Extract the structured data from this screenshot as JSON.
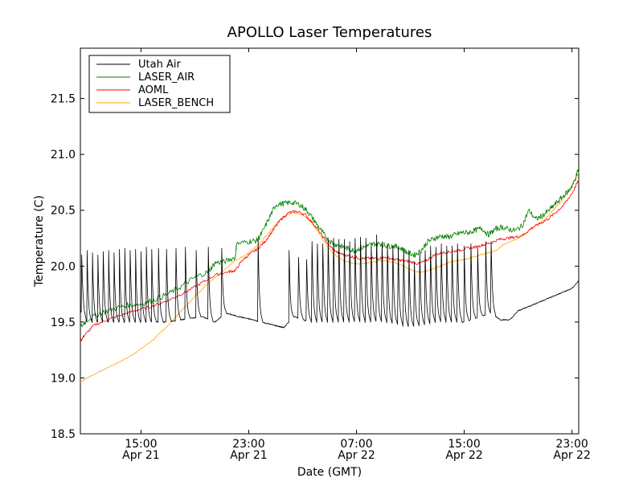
{
  "chart_data": {
    "type": "line",
    "title": "APOLLO Laser Temperatures",
    "xlabel": "Date (GMT)",
    "ylabel": "Temperature (C)",
    "x_unit": "hours since Apr 21 00:00 GMT",
    "xlim": [
      10.5,
      47.5
    ],
    "ylim": [
      18.5,
      21.95
    ],
    "yticks": [
      18.5,
      19.0,
      19.5,
      20.0,
      20.5,
      21.0,
      21.5
    ],
    "ytick_labels": [
      "18.5",
      "19.0",
      "19.5",
      "20.0",
      "20.5",
      "21.0",
      "21.5"
    ],
    "xticks": [
      {
        "x": 15,
        "time": "15:00",
        "date": "Apr 21"
      },
      {
        "x": 23,
        "time": "23:00",
        "date": "Apr 21"
      },
      {
        "x": 31,
        "time": "07:00",
        "date": "Apr 22"
      },
      {
        "x": 39,
        "time": "15:00",
        "date": "Apr 22"
      },
      {
        "x": 47,
        "time": "23:00",
        "date": "Apr 22"
      }
    ],
    "legend_position": "top-left",
    "series": [
      {
        "name": "Utah Air",
        "color": "#000000",
        "cycle_peak": 20.15,
        "cycle_base": 19.5,
        "points": [
          [
            10.5,
            19.6
          ],
          [
            11.0,
            19.5
          ],
          [
            14.0,
            19.5
          ],
          [
            17.0,
            19.5
          ],
          [
            19.5,
            19.55
          ],
          [
            20.5,
            19.5
          ],
          [
            21.3,
            19.58
          ],
          [
            22.2,
            19.55
          ],
          [
            23.3,
            19.52
          ],
          [
            23.9,
            19.5
          ],
          [
            24.6,
            19.48
          ],
          [
            25.6,
            19.45
          ],
          [
            26.4,
            19.55
          ],
          [
            27.5,
            19.5
          ],
          [
            30.0,
            19.5
          ],
          [
            33.0,
            19.5
          ],
          [
            35.0,
            19.45
          ],
          [
            37.0,
            19.5
          ],
          [
            39.0,
            19.5
          ],
          [
            41.0,
            19.58
          ],
          [
            41.7,
            19.52
          ],
          [
            42.4,
            19.52
          ],
          [
            43.0,
            19.6
          ],
          [
            44.0,
            19.65
          ],
          [
            45.0,
            19.7
          ],
          [
            46.0,
            19.75
          ],
          [
            47.0,
            19.8
          ],
          [
            47.5,
            19.87
          ]
        ],
        "spikes": [
          [
            10.6,
            20.1
          ],
          [
            11.0,
            20.14
          ],
          [
            11.4,
            20.12
          ],
          [
            11.8,
            20.1
          ],
          [
            12.2,
            20.13
          ],
          [
            12.6,
            20.14
          ],
          [
            13.0,
            20.12
          ],
          [
            13.4,
            20.15
          ],
          [
            13.8,
            20.16
          ],
          [
            14.2,
            20.14
          ],
          [
            14.6,
            20.15
          ],
          [
            15.0,
            20.13
          ],
          [
            15.4,
            20.17
          ],
          [
            15.8,
            20.15
          ],
          [
            16.3,
            20.16
          ],
          [
            16.9,
            20.15
          ],
          [
            17.6,
            20.16
          ],
          [
            18.3,
            20.17
          ],
          [
            19.1,
            20.14
          ],
          [
            20.0,
            20.17
          ],
          [
            21.0,
            20.16
          ],
          [
            23.7,
            20.24
          ],
          [
            26.0,
            20.14
          ],
          [
            26.7,
            20.08
          ],
          [
            27.3,
            20.06
          ],
          [
            27.7,
            20.22
          ],
          [
            28.1,
            20.2
          ],
          [
            28.5,
            20.2
          ],
          [
            28.9,
            20.24
          ],
          [
            29.3,
            20.25
          ],
          [
            29.7,
            20.24
          ],
          [
            30.1,
            20.24
          ],
          [
            30.5,
            20.22
          ],
          [
            30.9,
            20.25
          ],
          [
            31.3,
            20.26
          ],
          [
            31.7,
            20.25
          ],
          [
            32.1,
            20.2
          ],
          [
            32.5,
            20.28
          ],
          [
            32.9,
            20.22
          ],
          [
            33.3,
            20.2
          ],
          [
            33.7,
            20.18
          ],
          [
            34.1,
            20.18
          ],
          [
            34.5,
            20.16
          ],
          [
            34.9,
            20.12
          ],
          [
            35.3,
            20.04
          ],
          [
            35.7,
            20.12
          ],
          [
            36.1,
            20.14
          ],
          [
            36.5,
            20.18
          ],
          [
            36.9,
            20.17
          ],
          [
            37.3,
            20.2
          ],
          [
            37.7,
            20.18
          ],
          [
            38.1,
            20.18
          ],
          [
            38.5,
            20.2
          ],
          [
            39.0,
            20.18
          ],
          [
            39.5,
            20.2
          ],
          [
            40.0,
            20.16
          ],
          [
            40.6,
            20.22
          ],
          [
            41.0,
            20.22
          ]
        ]
      },
      {
        "name": "LASER_AIR",
        "color": "#008000",
        "points": [
          [
            10.5,
            19.45
          ],
          [
            11.0,
            19.52
          ],
          [
            12.0,
            19.58
          ],
          [
            13.0,
            19.62
          ],
          [
            14.0,
            19.65
          ],
          [
            15.0,
            19.66
          ],
          [
            16.0,
            19.7
          ],
          [
            17.0,
            19.75
          ],
          [
            18.0,
            19.82
          ],
          [
            19.0,
            19.9
          ],
          [
            20.0,
            19.95
          ],
          [
            20.5,
            20.03
          ],
          [
            21.2,
            20.04
          ],
          [
            22.0,
            20.08
          ],
          [
            22.1,
            20.2
          ],
          [
            23.0,
            20.22
          ],
          [
            23.6,
            20.23
          ],
          [
            24.0,
            20.3
          ],
          [
            24.6,
            20.45
          ],
          [
            25.0,
            20.55
          ],
          [
            25.6,
            20.56
          ],
          [
            26.2,
            20.57
          ],
          [
            26.8,
            20.55
          ],
          [
            27.3,
            20.5
          ],
          [
            27.8,
            20.42
          ],
          [
            28.3,
            20.33
          ],
          [
            28.8,
            20.25
          ],
          [
            29.3,
            20.2
          ],
          [
            29.8,
            20.18
          ],
          [
            30.3,
            20.16
          ],
          [
            30.8,
            20.14
          ],
          [
            31.3,
            20.16
          ],
          [
            31.8,
            20.18
          ],
          [
            32.3,
            20.2
          ],
          [
            32.8,
            20.2
          ],
          [
            33.3,
            20.18
          ],
          [
            33.8,
            20.18
          ],
          [
            34.3,
            20.16
          ],
          [
            34.8,
            20.12
          ],
          [
            35.3,
            20.1
          ],
          [
            35.8,
            20.14
          ],
          [
            36.3,
            20.22
          ],
          [
            36.8,
            20.25
          ],
          [
            37.3,
            20.27
          ],
          [
            37.8,
            20.26
          ],
          [
            38.3,
            20.28
          ],
          [
            38.8,
            20.3
          ],
          [
            39.3,
            20.3
          ],
          [
            39.8,
            20.32
          ],
          [
            40.3,
            20.34
          ],
          [
            40.8,
            20.28
          ],
          [
            41.3,
            20.33
          ],
          [
            41.8,
            20.35
          ],
          [
            42.3,
            20.33
          ],
          [
            42.8,
            20.32
          ],
          [
            43.3,
            20.36
          ],
          [
            43.8,
            20.5
          ],
          [
            44.3,
            20.42
          ],
          [
            44.8,
            20.45
          ],
          [
            45.3,
            20.5
          ],
          [
            45.8,
            20.56
          ],
          [
            46.3,
            20.62
          ],
          [
            46.8,
            20.68
          ],
          [
            47.2,
            20.76
          ],
          [
            47.5,
            20.88
          ]
        ]
      },
      {
        "name": "AOML",
        "color": "#ff0000",
        "points": [
          [
            10.5,
            19.33
          ],
          [
            10.8,
            19.38
          ],
          [
            11.5,
            19.47
          ],
          [
            12.5,
            19.52
          ],
          [
            13.5,
            19.56
          ],
          [
            14.5,
            19.6
          ],
          [
            15.5,
            19.63
          ],
          [
            16.5,
            19.67
          ],
          [
            17.5,
            19.72
          ],
          [
            18.5,
            19.78
          ],
          [
            19.5,
            19.85
          ],
          [
            20.5,
            19.92
          ],
          [
            21.5,
            19.95
          ],
          [
            22.0,
            19.96
          ],
          [
            22.5,
            20.05
          ],
          [
            23.0,
            20.1
          ],
          [
            23.6,
            20.15
          ],
          [
            24.2,
            20.22
          ],
          [
            24.8,
            20.32
          ],
          [
            25.4,
            20.42
          ],
          [
            26.0,
            20.48
          ],
          [
            26.6,
            20.49
          ],
          [
            27.2,
            20.46
          ],
          [
            27.8,
            20.38
          ],
          [
            28.4,
            20.28
          ],
          [
            29.0,
            20.18
          ],
          [
            29.6,
            20.12
          ],
          [
            30.2,
            20.1
          ],
          [
            30.8,
            20.08
          ],
          [
            31.4,
            20.07
          ],
          [
            32.0,
            20.07
          ],
          [
            32.6,
            20.07
          ],
          [
            33.2,
            20.08
          ],
          [
            33.8,
            20.06
          ],
          [
            34.4,
            20.05
          ],
          [
            35.0,
            20.04
          ],
          [
            35.6,
            20.02
          ],
          [
            36.2,
            20.05
          ],
          [
            36.8,
            20.1
          ],
          [
            37.4,
            20.12
          ],
          [
            38.0,
            20.13
          ],
          [
            38.6,
            20.14
          ],
          [
            39.2,
            20.16
          ],
          [
            39.8,
            20.17
          ],
          [
            40.4,
            20.19
          ],
          [
            41.0,
            20.21
          ],
          [
            41.6,
            20.24
          ],
          [
            42.2,
            20.25
          ],
          [
            42.8,
            20.26
          ],
          [
            43.4,
            20.28
          ],
          [
            44.0,
            20.34
          ],
          [
            44.6,
            20.38
          ],
          [
            45.2,
            20.42
          ],
          [
            45.8,
            20.48
          ],
          [
            46.4,
            20.55
          ],
          [
            47.0,
            20.65
          ],
          [
            47.5,
            20.77
          ]
        ]
      },
      {
        "name": "LASER_BENCH",
        "color": "#ffa500",
        "points": [
          [
            10.5,
            18.96
          ],
          [
            11.0,
            19.0
          ],
          [
            12.0,
            19.06
          ],
          [
            13.0,
            19.12
          ],
          [
            14.0,
            19.18
          ],
          [
            15.0,
            19.26
          ],
          [
            16.0,
            19.35
          ],
          [
            17.0,
            19.47
          ],
          [
            18.0,
            19.6
          ],
          [
            19.0,
            19.73
          ],
          [
            20.0,
            19.85
          ],
          [
            21.0,
            19.95
          ],
          [
            22.0,
            20.05
          ],
          [
            23.0,
            20.12
          ],
          [
            23.8,
            20.2
          ],
          [
            24.5,
            20.3
          ],
          [
            25.2,
            20.4
          ],
          [
            25.8,
            20.46
          ],
          [
            26.4,
            20.48
          ],
          [
            27.0,
            20.46
          ],
          [
            27.6,
            20.4
          ],
          [
            28.2,
            20.3
          ],
          [
            28.8,
            20.18
          ],
          [
            29.4,
            20.1
          ],
          [
            30.0,
            20.05
          ],
          [
            30.6,
            20.03
          ],
          [
            31.2,
            20.02
          ],
          [
            31.8,
            20.03
          ],
          [
            32.4,
            20.04
          ],
          [
            33.0,
            20.05
          ],
          [
            33.6,
            20.04
          ],
          [
            34.2,
            20.02
          ],
          [
            34.8,
            19.98
          ],
          [
            35.4,
            19.95
          ],
          [
            36.0,
            19.95
          ],
          [
            36.6,
            19.97
          ],
          [
            37.2,
            20.0
          ],
          [
            37.8,
            20.03
          ],
          [
            38.4,
            20.05
          ],
          [
            39.0,
            20.06
          ],
          [
            39.6,
            20.08
          ],
          [
            40.2,
            20.1
          ],
          [
            40.8,
            20.12
          ],
          [
            41.4,
            20.14
          ],
          [
            42.0,
            20.2
          ],
          [
            42.6,
            20.23
          ],
          [
            43.2,
            20.26
          ],
          [
            43.8,
            20.32
          ],
          [
            44.4,
            20.37
          ],
          [
            45.0,
            20.42
          ],
          [
            45.6,
            20.5
          ],
          [
            46.2,
            20.58
          ],
          [
            46.8,
            20.68
          ],
          [
            47.5,
            20.84
          ]
        ]
      }
    ]
  }
}
